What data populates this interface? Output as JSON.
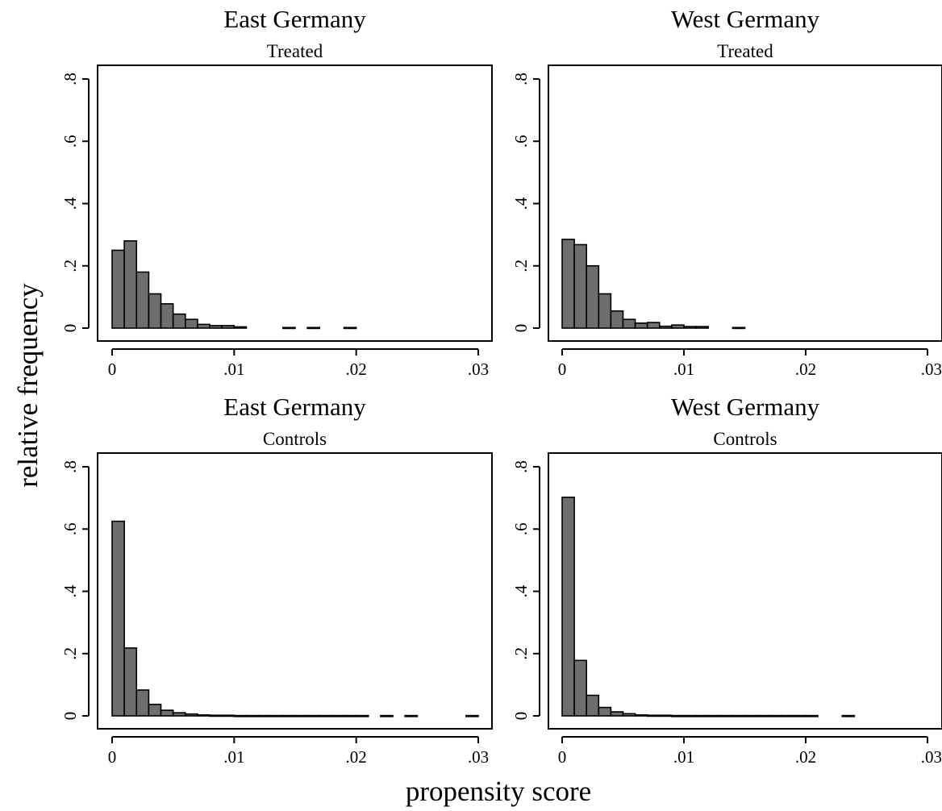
{
  "chart_data": [
    {
      "type": "bar",
      "title": "East Germany",
      "subtitle": "Treated",
      "bin_width": 0.001,
      "bins_start": [
        0,
        0.001,
        0.002,
        0.003,
        0.004,
        0.005,
        0.006,
        0.007,
        0.008,
        0.009,
        0.01,
        0.014,
        0.016,
        0.019
      ],
      "values": [
        0.25,
        0.28,
        0.18,
        0.11,
        0.078,
        0.045,
        0.028,
        0.012,
        0.008,
        0.008,
        0.004,
        0.002,
        0.002,
        0.002
      ],
      "xlim": [
        0,
        0.03
      ],
      "ylim": [
        0,
        0.8
      ],
      "x_ticks": [
        0,
        0.01,
        0.02,
        0.03
      ],
      "x_tick_labels": [
        "0",
        ".01",
        ".02",
        ".03"
      ],
      "y_ticks": [
        0,
        0.2,
        0.4,
        0.6,
        0.8
      ],
      "y_tick_labels": [
        "0",
        ".2",
        ".4",
        ".6",
        ".8"
      ]
    },
    {
      "type": "bar",
      "title": "West Germany",
      "subtitle": "Treated",
      "bin_width": 0.001,
      "bins_start": [
        0,
        0.001,
        0.002,
        0.003,
        0.004,
        0.005,
        0.006,
        0.007,
        0.008,
        0.009,
        0.01,
        0.011,
        0.014
      ],
      "values": [
        0.285,
        0.268,
        0.2,
        0.11,
        0.055,
        0.028,
        0.016,
        0.018,
        0.006,
        0.01,
        0.005,
        0.005,
        0.002
      ],
      "xlim": [
        0,
        0.03
      ],
      "ylim": [
        0,
        0.8
      ],
      "x_ticks": [
        0,
        0.01,
        0.02,
        0.03
      ],
      "x_tick_labels": [
        "0",
        ".01",
        ".02",
        ".03"
      ],
      "y_ticks": [
        0,
        0.2,
        0.4,
        0.6,
        0.8
      ],
      "y_tick_labels": [
        "0",
        ".2",
        ".4",
        ".6",
        ".8"
      ]
    },
    {
      "type": "bar",
      "title": "East Germany",
      "subtitle": "Controls",
      "bin_width": 0.001,
      "bins_start": [
        0,
        0.001,
        0.002,
        0.003,
        0.004,
        0.005,
        0.006,
        0.007,
        0.008,
        0.009,
        0.01,
        0.011,
        0.012,
        0.013,
        0.014,
        0.015,
        0.016,
        0.017,
        0.018,
        0.019,
        0.02,
        0.022,
        0.024,
        0.029
      ],
      "values": [
        0.625,
        0.218,
        0.083,
        0.037,
        0.018,
        0.01,
        0.006,
        0.003,
        0.002,
        0.002,
        0.001,
        0.001,
        0.001,
        0.001,
        0.001,
        0.001,
        0.001,
        0.001,
        0.001,
        0.001,
        0.001,
        0.001,
        0.001,
        0.001
      ],
      "xlim": [
        0,
        0.03
      ],
      "ylim": [
        0,
        0.8
      ],
      "x_ticks": [
        0,
        0.01,
        0.02,
        0.03
      ],
      "x_tick_labels": [
        "0",
        ".01",
        ".02",
        ".03"
      ],
      "y_ticks": [
        0,
        0.2,
        0.4,
        0.6,
        0.8
      ],
      "y_tick_labels": [
        "0",
        ".2",
        ".4",
        ".6",
        ".8"
      ]
    },
    {
      "type": "bar",
      "title": "West Germany",
      "subtitle": "Controls",
      "bin_width": 0.001,
      "bins_start": [
        0,
        0.001,
        0.002,
        0.003,
        0.004,
        0.005,
        0.006,
        0.007,
        0.008,
        0.009,
        0.01,
        0.011,
        0.012,
        0.013,
        0.014,
        0.015,
        0.016,
        0.017,
        0.018,
        0.019,
        0.02,
        0.023
      ],
      "values": [
        0.702,
        0.178,
        0.066,
        0.027,
        0.013,
        0.007,
        0.003,
        0.002,
        0.002,
        0.001,
        0.001,
        0.001,
        0.001,
        0.001,
        0.001,
        0.001,
        0.001,
        0.001,
        0.001,
        0.001,
        0.001,
        0.001
      ],
      "xlim": [
        0,
        0.03
      ],
      "ylim": [
        0,
        0.8
      ],
      "x_ticks": [
        0,
        0.01,
        0.02,
        0.03
      ],
      "x_tick_labels": [
        "0",
        ".01",
        ".02",
        ".03"
      ],
      "y_ticks": [
        0,
        0.2,
        0.4,
        0.6,
        0.8
      ],
      "y_tick_labels": [
        "0",
        ".2",
        ".4",
        ".6",
        ".8"
      ]
    }
  ],
  "shared": {
    "ylabel": "relative frequency",
    "xlabel": "propensity score"
  },
  "colors": {
    "bar_fill": "#6e6e6e",
    "bar_stroke": "#000000",
    "axis": "#000000"
  }
}
